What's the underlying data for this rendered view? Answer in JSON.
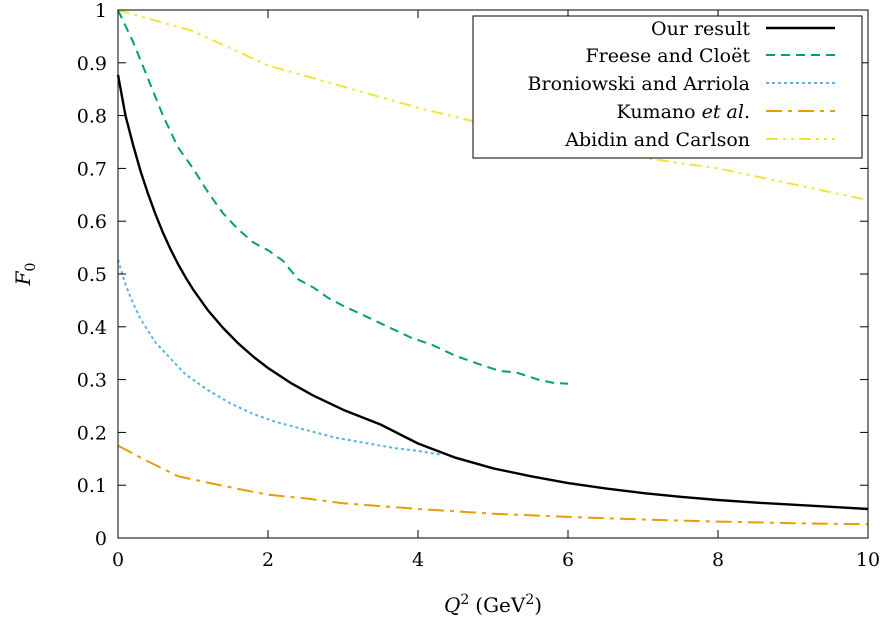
{
  "chart_data": {
    "type": "line",
    "xlabel": {
      "base": "Q",
      "sup": "2",
      "unit": "(GeV",
      "unit_sup": "2",
      "unit_close": ")"
    },
    "ylabel": {
      "base": "F",
      "sub": "0"
    },
    "xlim": [
      0,
      10
    ],
    "ylim": [
      0,
      1
    ],
    "xticks": [
      "0",
      "2",
      "4",
      "6",
      "8",
      "10"
    ],
    "yticks": [
      "0",
      "0.1",
      "0.2",
      "0.3",
      "0.4",
      "0.5",
      "0.6",
      "0.7",
      "0.8",
      "0.9",
      "1"
    ],
    "legend_position": "top-right",
    "series": [
      {
        "name": "Our result",
        "color": "#000000",
        "dash": "solid",
        "x": [
          0,
          0.1,
          0.2,
          0.3,
          0.4,
          0.5,
          0.6,
          0.7,
          0.8,
          0.9,
          1.0,
          1.2,
          1.4,
          1.6,
          1.8,
          2.0,
          2.3,
          2.6,
          3.0,
          3.5,
          4.0,
          4.5,
          5.0,
          5.5,
          6.0,
          6.5,
          7.0,
          7.5,
          8.0,
          8.5,
          9.0,
          9.5,
          10.0
        ],
        "y": [
          0.877,
          0.8,
          0.745,
          0.695,
          0.652,
          0.613,
          0.578,
          0.547,
          0.519,
          0.494,
          0.471,
          0.431,
          0.398,
          0.369,
          0.344,
          0.322,
          0.294,
          0.27,
          0.243,
          0.215,
          0.179,
          0.152,
          0.132,
          0.117,
          0.104,
          0.094,
          0.085,
          0.078,
          0.072,
          0.067,
          0.063,
          0.059,
          0.055
        ]
      },
      {
        "name": "Freese and Cloët",
        "color": "#009e73",
        "dash": "dashed",
        "x": [
          0,
          0.2,
          0.4,
          0.6,
          0.8,
          1.0,
          1.2,
          1.4,
          1.6,
          1.8,
          2.0,
          2.2,
          2.4,
          2.6,
          2.8,
          3.0,
          3.3,
          3.6,
          3.9,
          4.2,
          4.5,
          4.8,
          5.1,
          5.3,
          5.6,
          5.8,
          6.0
        ],
        "y": [
          1.0,
          0.94,
          0.87,
          0.8,
          0.74,
          0.7,
          0.655,
          0.615,
          0.585,
          0.56,
          0.545,
          0.525,
          0.49,
          0.475,
          0.455,
          0.44,
          0.42,
          0.4,
          0.38,
          0.365,
          0.345,
          0.33,
          0.316,
          0.314,
          0.3,
          0.294,
          0.292
        ]
      },
      {
        "name": "Broniowski and Arriola",
        "color": "#56b4e9",
        "dash": "dotted",
        "x": [
          0,
          0.1,
          0.2,
          0.3,
          0.5,
          0.7,
          0.9,
          1.2,
          1.5,
          1.8,
          2.1,
          2.5,
          2.9,
          3.3,
          3.7,
          4.0,
          4.3
        ],
        "y": [
          0.527,
          0.48,
          0.445,
          0.415,
          0.37,
          0.34,
          0.31,
          0.28,
          0.255,
          0.235,
          0.22,
          0.205,
          0.19,
          0.18,
          0.17,
          0.165,
          0.158
        ]
      },
      {
        "name": "Kumano et al.",
        "color": "#e69f00",
        "dash": "dashdot-long",
        "x": [
          0,
          0.4,
          0.8,
          1.2,
          1.6,
          2.0,
          2.5,
          3.0,
          4.0,
          5.0,
          6.0,
          7.0,
          8.0,
          9.0,
          10.0
        ],
        "y": [
          0.175,
          0.145,
          0.117,
          0.105,
          0.093,
          0.082,
          0.075,
          0.066,
          0.055,
          0.046,
          0.04,
          0.035,
          0.031,
          0.028,
          0.026
        ]
      },
      {
        "name": "Abidin and Carlson",
        "color": "#f0e442",
        "dash": "dashdotdot",
        "x": [
          0,
          1,
          2,
          3,
          4,
          5,
          6,
          7,
          8,
          9,
          10
        ],
        "y": [
          1.0,
          0.96,
          0.895,
          0.855,
          0.815,
          0.78,
          0.745,
          0.72,
          0.7,
          0.67,
          0.64
        ]
      }
    ]
  },
  "legend_labels": {
    "kumano_plain": "Kumano ",
    "kumano_italic": "et al."
  }
}
